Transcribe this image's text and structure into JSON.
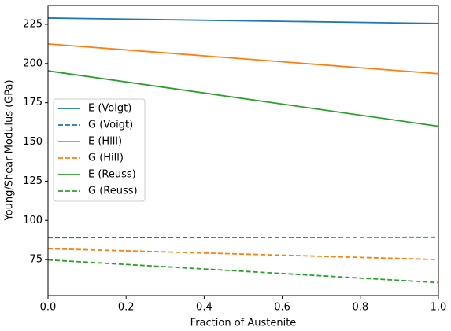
{
  "chart_data": {
    "type": "line",
    "xlabel": "Fraction of Austenite",
    "ylabel": "Young/Shear Modulus (GPa)",
    "x": [
      0,
      1
    ],
    "series": [
      {
        "name": "E (Voigt)",
        "color": "#1f77b4",
        "dash": false,
        "values": [
          229,
          225.5
        ]
      },
      {
        "name": "G (Voigt)",
        "color": "#1f77b4",
        "dash": true,
        "values": [
          89,
          89.2
        ]
      },
      {
        "name": "E (Hill)",
        "color": "#ff7f0e",
        "dash": false,
        "values": [
          212.5,
          193.5
        ]
      },
      {
        "name": "G (Hill)",
        "color": "#ff7f0e",
        "dash": true,
        "values": [
          82,
          75
        ]
      },
      {
        "name": "E (Reuss)",
        "color": "#2ca02c",
        "dash": false,
        "values": [
          195.3,
          160
        ]
      },
      {
        "name": "G (Reuss)",
        "color": "#2ca02c",
        "dash": true,
        "values": [
          74.8,
          60.3
        ]
      }
    ],
    "xlim": [
      0,
      1
    ],
    "xticks": [
      {
        "value": 0,
        "label": "0.0"
      },
      {
        "value": 0.2,
        "label": "0.2"
      },
      {
        "value": 0.4,
        "label": "0.4"
      },
      {
        "value": 0.6,
        "label": "0.6"
      },
      {
        "value": 0.8,
        "label": "0.8"
      },
      {
        "value": 1,
        "label": "1.0"
      }
    ],
    "ylim": [
      52,
      237
    ],
    "yticks": [
      75,
      100,
      125,
      150,
      175,
      200,
      225
    ],
    "legend": "center-left"
  }
}
